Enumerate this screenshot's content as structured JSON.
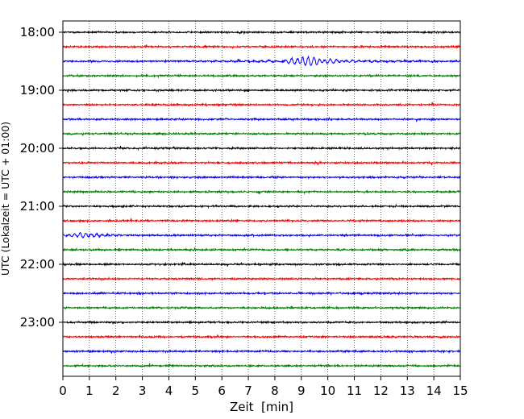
{
  "chart_data": {
    "type": "line",
    "title": "",
    "xlabel": "Zeit  [min]",
    "ylabel": "UTC (Lokalzeit = UTC + 01:00)",
    "xlim": [
      0,
      15
    ],
    "x_ticks": [
      0,
      1,
      2,
      3,
      4,
      5,
      6,
      7,
      8,
      9,
      10,
      11,
      12,
      13,
      14,
      15
    ],
    "y_tick_labels": [
      "18:00",
      "19:00",
      "20:00",
      "21:00",
      "22:00",
      "23:00"
    ],
    "grid": "vertical-dotted",
    "legend": "none",
    "trace_colors": [
      "#000000",
      "#ff0000",
      "#0000ff",
      "#008000"
    ],
    "traces": [
      {
        "start": "18:00"
      },
      {
        "start": "18:15"
      },
      {
        "start": "18:30"
      },
      {
        "start": "18:45"
      },
      {
        "start": "19:00"
      },
      {
        "start": "19:15"
      },
      {
        "start": "19:30"
      },
      {
        "start": "19:45"
      },
      {
        "start": "20:00"
      },
      {
        "start": "20:15"
      },
      {
        "start": "20:30"
      },
      {
        "start": "20:45"
      },
      {
        "start": "21:00"
      },
      {
        "start": "21:15"
      },
      {
        "start": "21:30"
      },
      {
        "start": "21:45"
      },
      {
        "start": "22:00"
      },
      {
        "start": "22:15"
      },
      {
        "start": "22:30"
      },
      {
        "start": "22:45"
      },
      {
        "start": "23:00"
      },
      {
        "start": "23:15"
      },
      {
        "start": "23:30"
      },
      {
        "start": "23:45"
      }
    ],
    "events": [
      {
        "trace_start": "18:30",
        "x": 9.0,
        "label": ""
      },
      {
        "trace_start": "21:30",
        "x": 0.6,
        "label": ""
      }
    ]
  }
}
